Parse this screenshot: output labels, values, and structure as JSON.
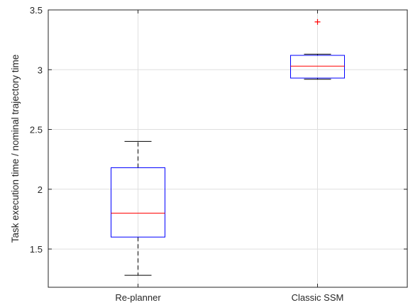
{
  "chart_data": {
    "type": "box",
    "title": "",
    "xlabel": "",
    "ylabel": "Task execution time / nominal trajectory time",
    "ylim": [
      1.18,
      3.5
    ],
    "yticks": [
      1.5,
      2,
      2.5,
      3,
      3.5
    ],
    "ytick_labels": [
      "1.5",
      "2",
      "2.5",
      "3",
      "3.5"
    ],
    "grid": true,
    "categories": [
      "Re-planner",
      "Classic SSM"
    ],
    "boxes": [
      {
        "category": "Re-planner",
        "whisker_low": 1.28,
        "q1": 1.6,
        "median": 1.8,
        "q3": 2.18,
        "whisker_high": 2.4,
        "outliers": []
      },
      {
        "category": "Classic SSM",
        "whisker_low": 2.92,
        "q1": 2.93,
        "median": 3.03,
        "q3": 3.12,
        "whisker_high": 3.13,
        "outliers": [
          3.4
        ]
      }
    ],
    "colors": {
      "box": "#0000ff",
      "median": "#ff0000",
      "whisker": "#000000",
      "outlier": "#ff0000",
      "grid": "#dfdfdf",
      "axis": "#262626"
    }
  }
}
